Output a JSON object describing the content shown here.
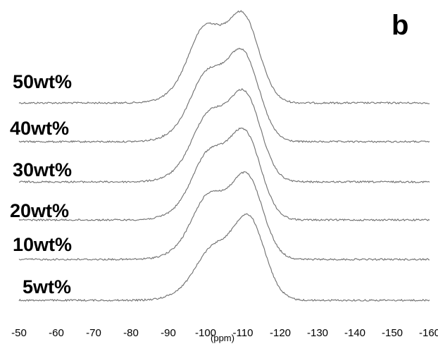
{
  "chart_data": {
    "type": "line",
    "panel_label": "b",
    "xlabel": "(ppm)",
    "ylabel": "",
    "x_axis": "reversed",
    "xlim": [
      -50,
      -160
    ],
    "x_ticks": [
      -50,
      -60,
      -70,
      -80,
      -90,
      -100,
      -110,
      -120,
      -130,
      -140,
      -150,
      -160
    ],
    "x_tick_labels": [
      "-50",
      "-60",
      "-70",
      "-80",
      "-90",
      "-100",
      "-110",
      "-120",
      "-130",
      "-140",
      "-150",
      "-160"
    ],
    "grid": false,
    "legend": "none",
    "series_color": "#6e6e6e",
    "series": [
      {
        "name": "50wt%",
        "peaks": [
          {
            "x": -100,
            "height": 0.8
          },
          {
            "x": -110,
            "height": 1.0
          }
        ]
      },
      {
        "name": "40wt%",
        "peaks": [
          {
            "x": -100.5,
            "height": 0.7
          },
          {
            "x": -110,
            "height": 1.0
          }
        ]
      },
      {
        "name": "30wt%",
        "peaks": [
          {
            "x": -101,
            "height": 0.7
          },
          {
            "x": -110.5,
            "height": 1.0
          }
        ]
      },
      {
        "name": "20wt%",
        "peaks": [
          {
            "x": -101,
            "height": 0.7
          },
          {
            "x": -110.5,
            "height": 1.0
          }
        ]
      },
      {
        "name": "10wt%",
        "peaks": [
          {
            "x": -101,
            "height": 0.7
          },
          {
            "x": -111,
            "height": 1.0
          }
        ]
      },
      {
        "name": "5wt%",
        "peaks": [
          {
            "x": -102,
            "height": 0.55
          },
          {
            "x": -111.5,
            "height": 1.0
          }
        ]
      }
    ]
  }
}
